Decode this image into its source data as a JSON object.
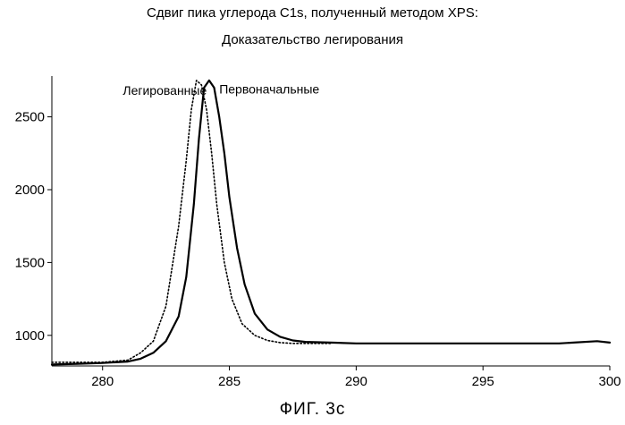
{
  "title_line1": "Сдвиг пика углерода C1s, полученный методом XPS:",
  "title_line2": "Доказательство легирования",
  "caption": "ФИГ. 3с",
  "chart_data": {
    "type": "line",
    "title": "Сдвиг пика углерода C1s, полученный методом XPS: Доказательство легирования",
    "xlabel": "",
    "ylabel": "",
    "xlim": [
      278,
      300
    ],
    "ylim": [
      790,
      2780
    ],
    "x_ticks": [
      280,
      285,
      290,
      295,
      300
    ],
    "y_ticks": [
      1000,
      1500,
      2000,
      2500
    ],
    "grid": false,
    "series": [
      {
        "name": "Первоначальные",
        "style": "solid",
        "color": "#000000",
        "x": [
          278,
          279,
          280,
          281,
          281.5,
          282,
          282.5,
          283,
          283.3,
          283.6,
          283.8,
          284.0,
          284.2,
          284.4,
          284.6,
          284.8,
          285.0,
          285.3,
          285.6,
          286,
          286.5,
          287,
          287.5,
          288,
          289,
          290,
          292,
          294,
          296,
          298,
          299.5,
          300
        ],
        "y": [
          800,
          805,
          810,
          820,
          840,
          880,
          960,
          1130,
          1400,
          1900,
          2350,
          2700,
          2750,
          2700,
          2500,
          2250,
          1950,
          1600,
          1350,
          1150,
          1040,
          990,
          965,
          955,
          950,
          945,
          945,
          945,
          945,
          945,
          960,
          950
        ]
      },
      {
        "name": "Легированные",
        "style": "dotted",
        "color": "#000000",
        "x": [
          278,
          279,
          280,
          281,
          281.5,
          282,
          282.5,
          283,
          283.3,
          283.5,
          283.7,
          283.9,
          284.1,
          284.3,
          284.5,
          284.8,
          285.1,
          285.5,
          286,
          286.5,
          287,
          287.5,
          288,
          289
        ],
        "y": [
          815,
          815,
          815,
          830,
          880,
          960,
          1200,
          1750,
          2200,
          2550,
          2750,
          2720,
          2550,
          2250,
          1900,
          1500,
          1250,
          1080,
          1000,
          965,
          950,
          945,
          945,
          945
        ]
      }
    ],
    "annotations": [
      {
        "text": "Легированные",
        "x": 280.8,
        "y": 2650
      },
      {
        "text": "Первоначальные",
        "x": 284.6,
        "y": 2660
      }
    ]
  }
}
